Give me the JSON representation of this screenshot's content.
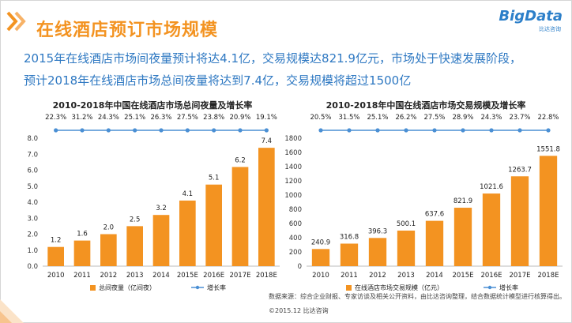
{
  "header": {
    "title": "在线酒店预订市场规模",
    "logo_text": "BigData",
    "logo_sub": "比达咨询"
  },
  "summary": {
    "line1": "2015年在线酒店市场间夜量预计将达4.1亿，交易规模达821.9亿元，市场处于快速发展阶段，",
    "line2": "预计2018年在线酒店市场总间夜量将达到7.4亿，交易规模将超过1500亿"
  },
  "colors": {
    "accent": "#f39321",
    "bar": "#f39321",
    "line": "#4a8fd4",
    "text_blue": "#2e78c2"
  },
  "footer": {
    "source": "数据来源：综合企业财报、专家访谈及相关公开资料，由比达咨询整理，结合数据统计模型进行核算得出。",
    "copyright": "©2015.12  比达咨询"
  },
  "chart_data": [
    {
      "type": "bar",
      "title": "2010-2018年中国在线酒店市场总间夜量及增长率",
      "categories": [
        "2010",
        "2011",
        "2012",
        "2013",
        "2014",
        "2015E",
        "2016E",
        "2017E",
        "2018E"
      ],
      "series": [
        {
          "name": "总间夜量（亿间夜）",
          "type": "bar",
          "values": [
            1.2,
            1.6,
            2.0,
            2.5,
            3.2,
            4.1,
            5.1,
            6.2,
            7.4
          ],
          "labels": [
            "1.2",
            "1.6",
            "2.0",
            "2.5",
            "3.2",
            "4.1",
            "5.1",
            "6.2",
            "7.4"
          ]
        },
        {
          "name": "增长率",
          "type": "line",
          "labels": [
            "22.3%",
            "31.2%",
            "24.3%",
            "25.1%",
            "26.3%",
            "27.5%",
            "23.8%",
            "20.9%",
            "19.1%"
          ]
        }
      ],
      "ylim": [
        0,
        8
      ],
      "yticks": [
        "0.0",
        "1.0",
        "2.0",
        "3.0",
        "4.0",
        "5.0",
        "6.0",
        "7.0",
        "8.0"
      ],
      "legend": "bottom"
    },
    {
      "type": "bar",
      "title": "2010-2018年中国在线酒店市场交易规模及增长率",
      "categories": [
        "2010",
        "2011",
        "2012",
        "2013",
        "2014",
        "2015E",
        "2016E",
        "2017E",
        "2018E"
      ],
      "series": [
        {
          "name": "在线酒店市场交易规模（亿元）",
          "type": "bar",
          "values": [
            240.9,
            316.8,
            396.3,
            500.1,
            637.6,
            821.9,
            1021.6,
            1263.7,
            1551.8
          ],
          "labels": [
            "240.9",
            "316.8",
            "396.3",
            "500.1",
            "637.6",
            "821.9",
            "1021.6",
            "1263.7",
            "1551.8"
          ]
        },
        {
          "name": "增长率",
          "type": "line",
          "labels": [
            "20.5%",
            "31.5%",
            "25.1%",
            "26.2%",
            "27.5%",
            "28.9%",
            "24.3%",
            "23.7%",
            "22.8%"
          ]
        }
      ],
      "ylim": [
        0,
        1800
      ],
      "yticks": [
        "0",
        "200",
        "400",
        "600",
        "800",
        "1000",
        "1200",
        "1400",
        "1600",
        "1800"
      ],
      "legend": "bottom"
    }
  ]
}
